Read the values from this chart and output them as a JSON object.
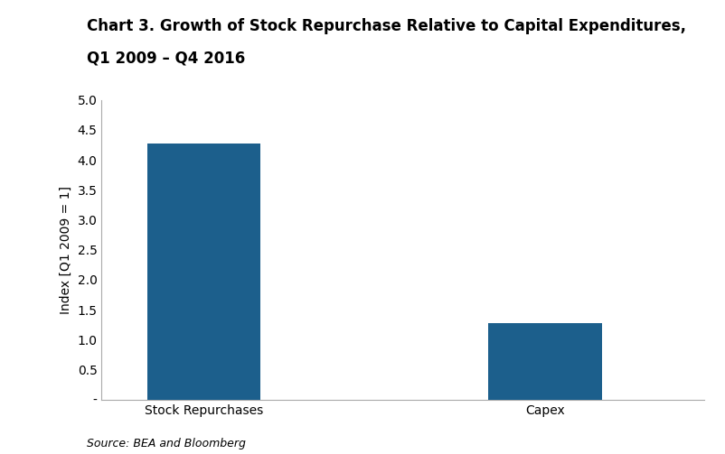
{
  "title_line1": "Chart 3. Growth of Stock Repurchase Relative to Capital Expenditures,",
  "title_line2": "Q1 2009 – Q4 2016",
  "categories": [
    "Stock Repurchases",
    "Capex"
  ],
  "values": [
    4.27,
    1.27
  ],
  "bar_color": "#1c5f8c",
  "ylabel": "Index [Q1 2009 = 1]",
  "ylim": [
    0,
    5.0
  ],
  "yticks": [
    0.0,
    0.5,
    1.0,
    1.5,
    2.0,
    2.5,
    3.0,
    3.5,
    4.0,
    4.5,
    5.0
  ],
  "ytick_labels": [
    "-",
    "0.5",
    "1.0",
    "1.5",
    "2.0",
    "2.5",
    "3.0",
    "3.5",
    "4.0",
    "4.5",
    "5.0"
  ],
  "source_text": "Source: BEA and Bloomberg",
  "background_color": "#ffffff",
  "title_fontsize": 12,
  "label_fontsize": 10,
  "tick_fontsize": 10,
  "source_fontsize": 9,
  "bar_width": 0.5,
  "x_positions": [
    1,
    2.5
  ]
}
